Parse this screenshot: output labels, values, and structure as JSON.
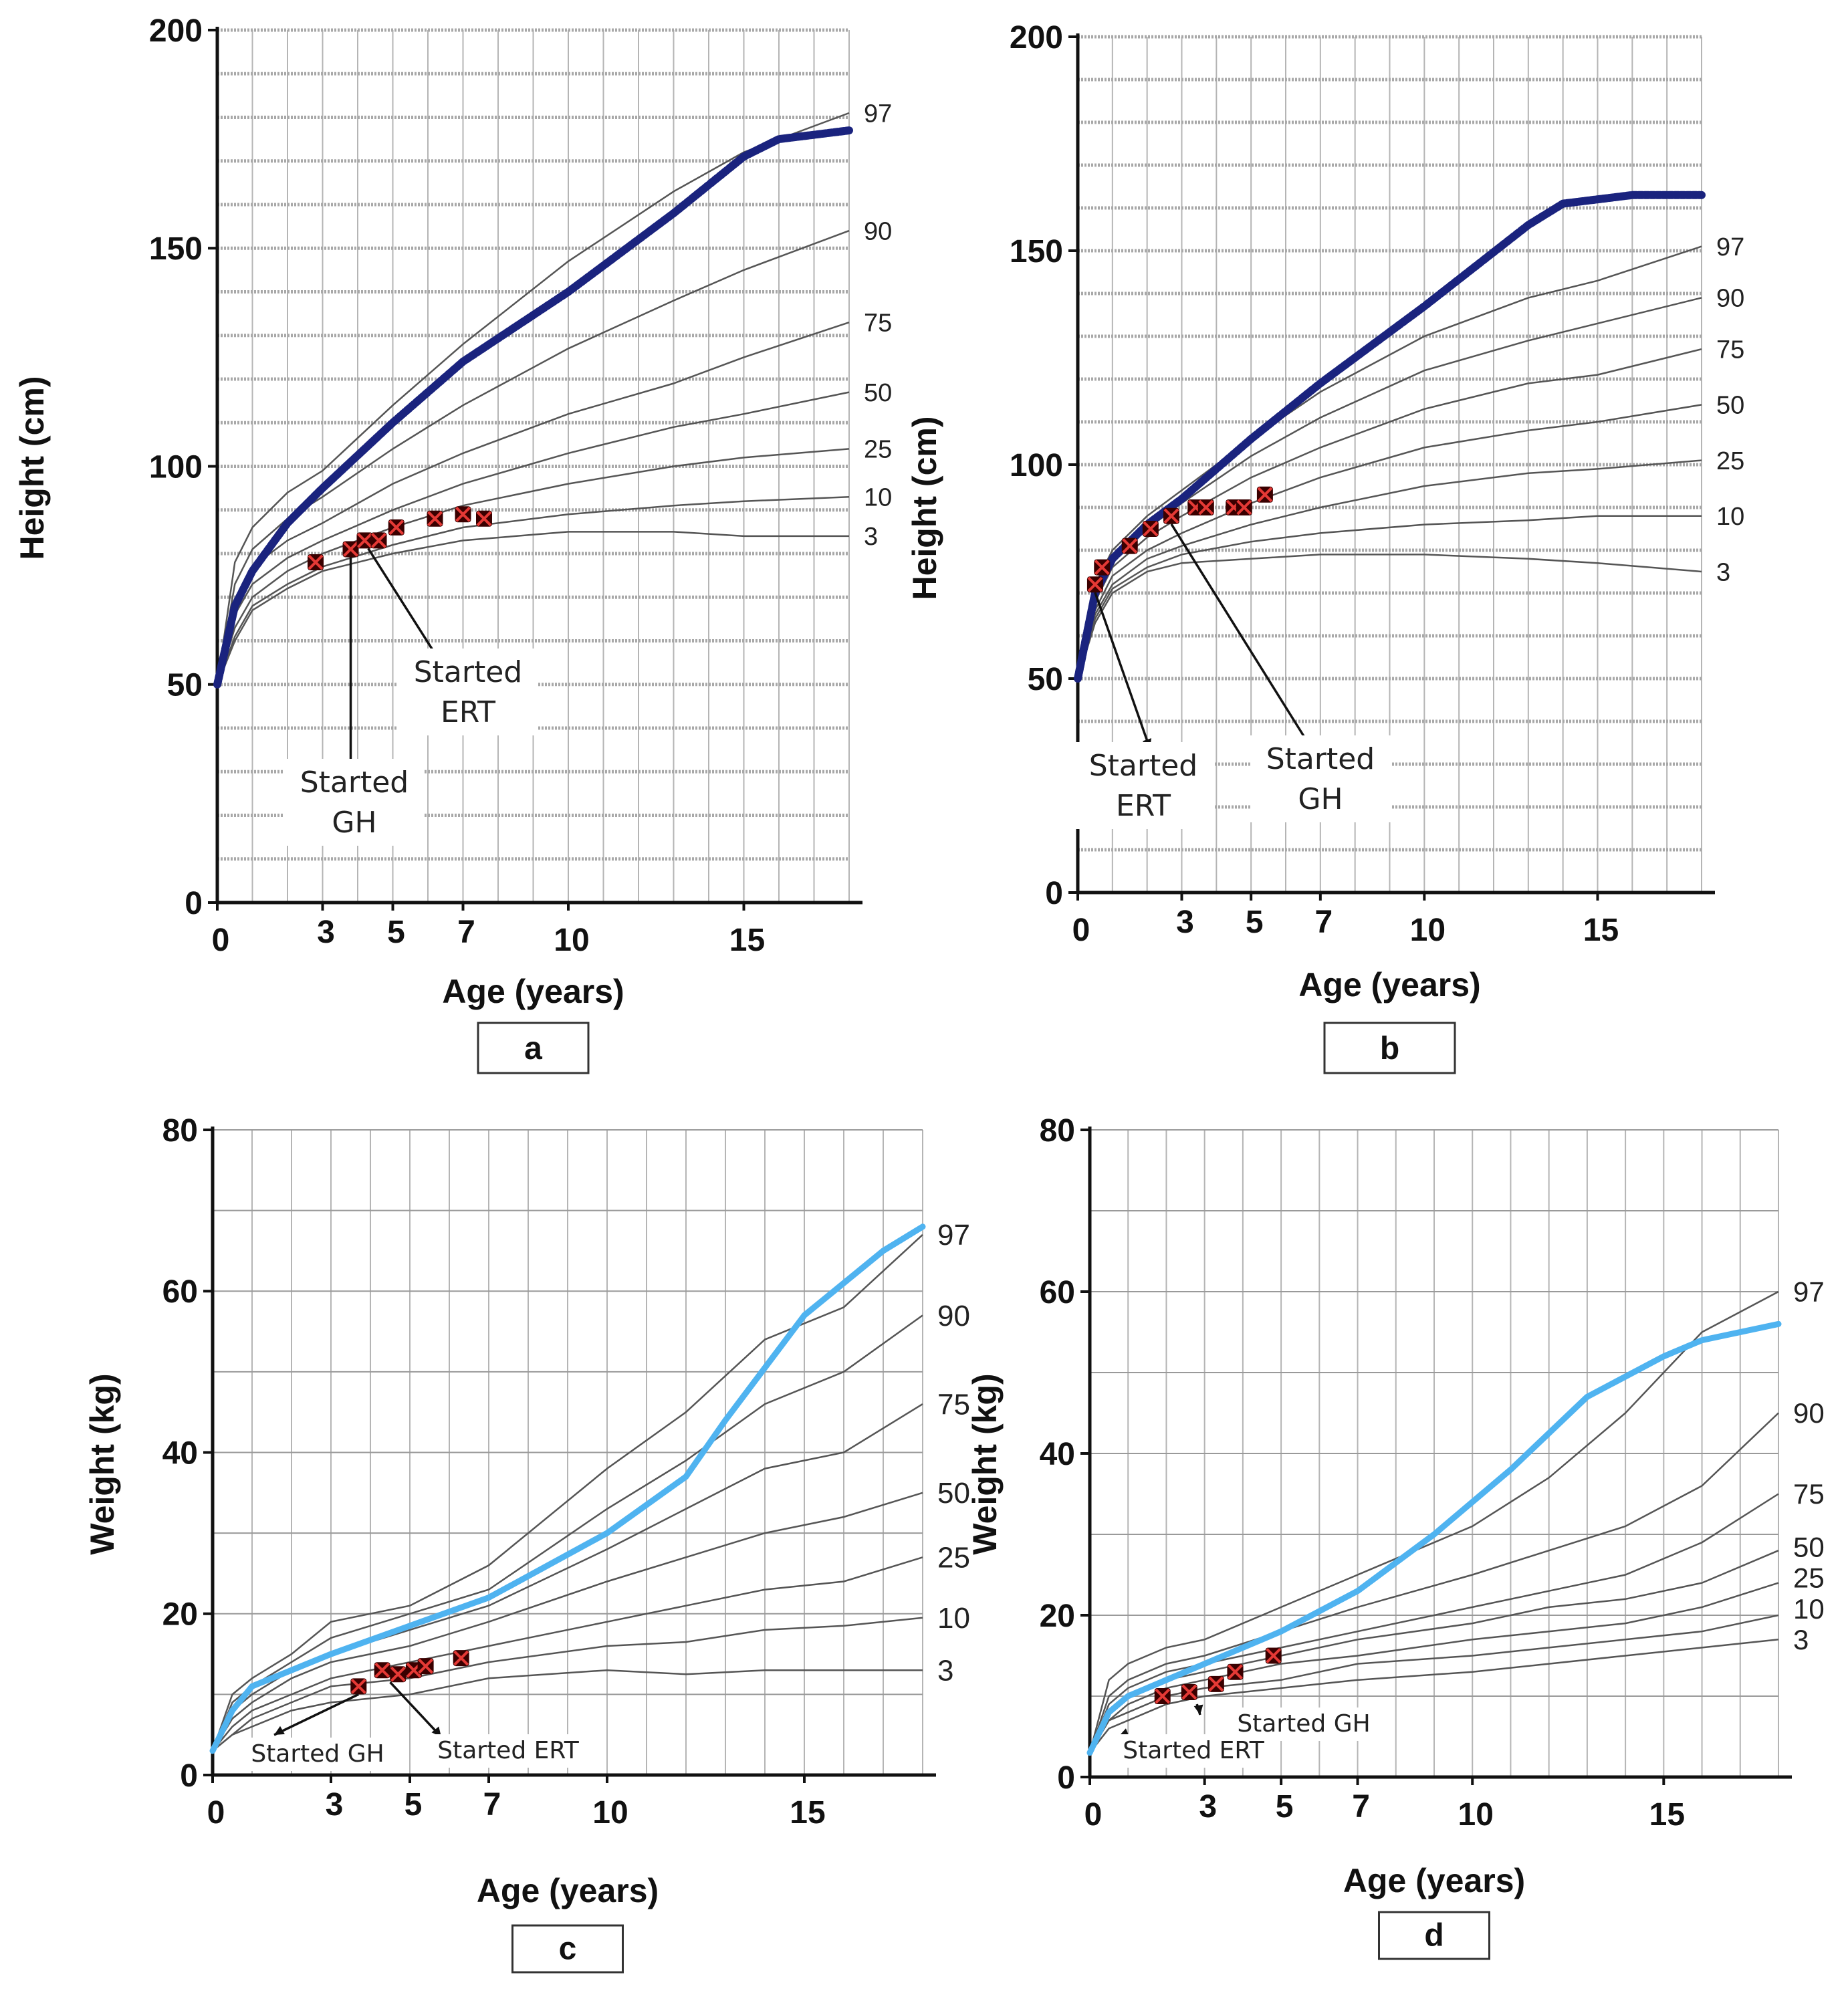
{
  "chart_data": [
    {
      "panel": "a",
      "type": "line",
      "ylabel": "Height (cm)",
      "xlabel": "Age (years)",
      "xticks": [
        0,
        3,
        5,
        7,
        10,
        15
      ],
      "yticks": [
        0,
        50,
        100,
        150,
        200
      ],
      "xlim": [
        0,
        18
      ],
      "ylim": [
        0,
        200
      ],
      "percentile_labels": [
        "97",
        "90",
        "75",
        "50",
        "25",
        "10",
        "3"
      ],
      "percentile_curves": [
        {
          "name": "97",
          "x": [
            0,
            0.5,
            1,
            2,
            3,
            5,
            7,
            10,
            13,
            15,
            18
          ],
          "y": [
            50,
            78,
            86,
            94,
            99,
            114,
            128,
            147,
            163,
            172,
            181
          ]
        },
        {
          "name": "90",
          "x": [
            0,
            0.5,
            1,
            2,
            3,
            5,
            7,
            10,
            13,
            15,
            18
          ],
          "y": [
            50,
            73,
            81,
            88,
            93,
            104,
            114,
            127,
            138,
            145,
            154
          ]
        },
        {
          "name": "75",
          "x": [
            0,
            0.5,
            1,
            2,
            3,
            5,
            7,
            10,
            13,
            15,
            18
          ],
          "y": [
            50,
            69,
            77,
            83,
            87,
            96,
            103,
            112,
            119,
            125,
            133
          ]
        },
        {
          "name": "50",
          "x": [
            0,
            0.5,
            1,
            2,
            3,
            5,
            7,
            10,
            13,
            15,
            18
          ],
          "y": [
            50,
            66,
            73,
            79,
            83,
            90,
            96,
            103,
            109,
            112,
            117
          ]
        },
        {
          "name": "25",
          "x": [
            0,
            0.5,
            1,
            2,
            3,
            5,
            7,
            10,
            13,
            15,
            18
          ],
          "y": [
            50,
            63,
            70,
            76,
            80,
            86,
            91,
            96,
            100,
            102,
            104
          ]
        },
        {
          "name": "10",
          "x": [
            0,
            0.5,
            1,
            2,
            3,
            5,
            7,
            10,
            13,
            15,
            18
          ],
          "y": [
            50,
            61,
            68,
            73,
            77,
            82,
            86,
            89,
            91,
            92,
            93
          ]
        },
        {
          "name": "3",
          "x": [
            0,
            0.5,
            1,
            2,
            3,
            5,
            7,
            10,
            13,
            15,
            18
          ],
          "y": [
            50,
            60,
            67,
            72,
            76,
            80,
            83,
            85,
            85,
            84,
            84
          ]
        }
      ],
      "reference_curve": {
        "x": [
          0,
          0.5,
          1,
          2,
          3,
          5,
          7,
          10,
          13,
          15,
          16,
          18
        ],
        "y": [
          50,
          68,
          76,
          87,
          95,
          110,
          124,
          140,
          158,
          171,
          175,
          177
        ]
      },
      "patient_points": {
        "x": [
          2.8,
          3.8,
          4.2,
          4.6,
          5.1,
          6.2,
          7.0,
          7.6
        ],
        "y": [
          78,
          81,
          83,
          83,
          86,
          88,
          89,
          88
        ]
      },
      "annotations": [
        {
          "line1": "Started",
          "line2": "GH",
          "target": {
            "x": 3.8,
            "y": 81
          }
        },
        {
          "line1": "Started",
          "line2": "ERT",
          "target": {
            "x": 4.3,
            "y": 83
          }
        }
      ]
    },
    {
      "panel": "b",
      "type": "line",
      "ylabel": "Height (cm)",
      "xlabel": "Age (years)",
      "xticks": [
        0,
        3,
        5,
        7,
        10,
        15
      ],
      "yticks": [
        0,
        50,
        100,
        150,
        200
      ],
      "xlim": [
        0,
        18
      ],
      "ylim": [
        0,
        200
      ],
      "percentile_labels": [
        "97",
        "90",
        "75",
        "50",
        "25",
        "10",
        "3"
      ],
      "percentile_curves": [
        {
          "name": "97",
          "x": [
            0,
            0.5,
            1,
            2,
            3,
            5,
            7,
            10,
            13,
            15,
            18
          ],
          "y": [
            50,
            72,
            80,
            88,
            94,
            106,
            117,
            130,
            139,
            143,
            151
          ]
        },
        {
          "name": "90",
          "x": [
            0,
            0.5,
            1,
            2,
            3,
            5,
            7,
            10,
            13,
            15,
            18
          ],
          "y": [
            50,
            70,
            78,
            85,
            91,
            102,
            111,
            122,
            129,
            133,
            139
          ]
        },
        {
          "name": "75",
          "x": [
            0,
            0.5,
            1,
            2,
            3,
            5,
            7,
            10,
            13,
            15,
            18
          ],
          "y": [
            50,
            68,
            76,
            83,
            88,
            97,
            104,
            113,
            119,
            121,
            127
          ]
        },
        {
          "name": "50",
          "x": [
            0,
            0.5,
            1,
            2,
            3,
            5,
            7,
            10,
            13,
            15,
            18
          ],
          "y": [
            50,
            66,
            74,
            80,
            84,
            91,
            97,
            104,
            108,
            110,
            114
          ]
        },
        {
          "name": "25",
          "x": [
            0,
            0.5,
            1,
            2,
            3,
            5,
            7,
            10,
            13,
            15,
            18
          ],
          "y": [
            50,
            65,
            72,
            78,
            81,
            86,
            90,
            95,
            98,
            99,
            101
          ]
        },
        {
          "name": "10",
          "x": [
            0,
            0.5,
            1,
            2,
            3,
            5,
            7,
            10,
            13,
            15,
            18
          ],
          "y": [
            50,
            64,
            71,
            76,
            79,
            82,
            84,
            86,
            87,
            88,
            88
          ]
        },
        {
          "name": "3",
          "x": [
            0,
            0.5,
            1,
            2,
            3,
            5,
            7,
            10,
            13,
            15,
            18
          ],
          "y": [
            50,
            63,
            70,
            75,
            77,
            78,
            79,
            79,
            78,
            77,
            75
          ]
        }
      ],
      "reference_curve": {
        "x": [
          0,
          0.5,
          1,
          2,
          3,
          5,
          7,
          10,
          13,
          14,
          15,
          16,
          18
        ],
        "y": [
          50,
          70,
          78,
          86,
          92,
          106,
          119,
          137,
          156,
          161,
          162,
          163,
          163
        ]
      },
      "patient_points": {
        "x": [
          0.5,
          0.7,
          1.5,
          2.1,
          2.7,
          3.4,
          3.7,
          4.5,
          4.8,
          5.4
        ],
        "y": [
          72,
          76,
          81,
          85,
          88,
          90,
          90,
          90,
          90,
          93
        ]
      },
      "annotations": [
        {
          "line1": "Started",
          "line2": "ERT",
          "target": {
            "x": 0.5,
            "y": 72
          }
        },
        {
          "line1": "Started",
          "line2": "GH",
          "target": {
            "x": 2.7,
            "y": 88
          }
        }
      ]
    },
    {
      "panel": "c",
      "type": "line",
      "ylabel": "Weight (kg)",
      "xlabel": "Age (years)",
      "xticks": [
        0,
        3,
        5,
        7,
        10,
        15
      ],
      "yticks": [
        0,
        20,
        40,
        60,
        80
      ],
      "xlim": [
        0,
        18
      ],
      "ylim": [
        0,
        80
      ],
      "percentile_labels": [
        "97",
        "90",
        "75",
        "50",
        "25",
        "10",
        "3"
      ],
      "percentile_curves": [
        {
          "name": "97",
          "x": [
            0,
            0.5,
            1,
            2,
            3,
            5,
            7,
            10,
            12,
            14,
            16,
            18
          ],
          "y": [
            3,
            10,
            12,
            15,
            19,
            21,
            26,
            38,
            45,
            54,
            58,
            67
          ]
        },
        {
          "name": "90",
          "x": [
            0,
            0.5,
            1,
            2,
            3,
            5,
            7,
            10,
            12,
            14,
            16,
            18
          ],
          "y": [
            3,
            9,
            11,
            14,
            17,
            20,
            23,
            33,
            39,
            46,
            50,
            57
          ]
        },
        {
          "name": "75",
          "x": [
            0,
            0.5,
            1,
            2,
            3,
            5,
            7,
            10,
            12,
            14,
            16,
            18
          ],
          "y": [
            3,
            8,
            10,
            13,
            15,
            18,
            21,
            28,
            33,
            38,
            40,
            46
          ]
        },
        {
          "name": "50",
          "x": [
            0,
            0.5,
            1,
            2,
            3,
            5,
            7,
            10,
            12,
            14,
            16,
            18
          ],
          "y": [
            3,
            7,
            9,
            12,
            14,
            16,
            19,
            24,
            27,
            30,
            32,
            35
          ]
        },
        {
          "name": "25",
          "x": [
            0,
            0.5,
            1,
            2,
            3,
            5,
            7,
            10,
            12,
            14,
            16,
            18
          ],
          "y": [
            3,
            6,
            8,
            10,
            12,
            14,
            16,
            19,
            21,
            23,
            24,
            27
          ]
        },
        {
          "name": "10",
          "x": [
            0,
            0.5,
            1,
            2,
            3,
            5,
            7,
            10,
            12,
            14,
            16,
            18
          ],
          "y": [
            3,
            5,
            7,
            9,
            11,
            12,
            14,
            16,
            16.5,
            18,
            18.5,
            19.5
          ]
        },
        {
          "name": "3",
          "x": [
            0,
            0.5,
            1,
            2,
            3,
            5,
            7,
            10,
            12,
            14,
            16,
            18
          ],
          "y": [
            3,
            5,
            6,
            8,
            9,
            10,
            12,
            13,
            12.5,
            13,
            13,
            13
          ]
        }
      ],
      "reference_curve": {
        "x": [
          0,
          0.5,
          1,
          2,
          3,
          5,
          7,
          10,
          12,
          13,
          15,
          17,
          18
        ],
        "y": [
          3,
          8,
          11,
          13,
          15,
          18.5,
          22,
          30,
          37,
          44,
          57,
          65,
          68
        ]
      },
      "patient_points": {
        "x": [
          3.7,
          4.3,
          4.7,
          5.1,
          5.4,
          6.3
        ],
        "y": [
          11,
          13,
          12.5,
          13,
          13.5,
          14.5
        ]
      },
      "annotations": [
        {
          "label": "Started GH",
          "target": {
            "x": 3.7,
            "y": 11
          }
        },
        {
          "label": "Started ERT",
          "target": {
            "x": 4.5,
            "y": 12.5
          }
        }
      ]
    },
    {
      "panel": "d",
      "type": "line",
      "ylabel": "Weight (kg)",
      "xlabel": "Age (years)",
      "xticks": [
        0,
        3,
        5,
        7,
        10,
        15
      ],
      "yticks": [
        0,
        20,
        40,
        60,
        80
      ],
      "xlim": [
        0,
        18
      ],
      "ylim": [
        0,
        80
      ],
      "percentile_labels": [
        "97",
        "90",
        "75",
        "50",
        "25",
        "10",
        "3"
      ],
      "percentile_curves": [
        {
          "name": "97",
          "x": [
            0,
            0.5,
            1,
            2,
            3,
            5,
            7,
            10,
            12,
            14,
            16,
            18
          ],
          "y": [
            3,
            12,
            14,
            16,
            17,
            21,
            25,
            31,
            37,
            45,
            55,
            60
          ]
        },
        {
          "name": "90",
          "x": [
            0,
            0.5,
            1,
            2,
            3,
            5,
            7,
            10,
            12,
            14,
            16,
            18
          ],
          "y": [
            3,
            10,
            12,
            14,
            15,
            18,
            21,
            25,
            28,
            31,
            36,
            45
          ]
        },
        {
          "name": "75",
          "x": [
            0,
            0.5,
            1,
            2,
            3,
            5,
            7,
            10,
            12,
            14,
            16,
            18
          ],
          "y": [
            3,
            9,
            11,
            13,
            14,
            16,
            18,
            21,
            23,
            25,
            29,
            35
          ]
        },
        {
          "name": "50",
          "x": [
            0,
            0.5,
            1,
            2,
            3,
            5,
            7,
            10,
            12,
            14,
            16,
            18
          ],
          "y": [
            3,
            8,
            10,
            12,
            13,
            15,
            17,
            19,
            21,
            22,
            24,
            28
          ]
        },
        {
          "name": "25",
          "x": [
            0,
            0.5,
            1,
            2,
            3,
            5,
            7,
            10,
            12,
            14,
            16,
            18
          ],
          "y": [
            3,
            7,
            9,
            11,
            12,
            14,
            15,
            17,
            18,
            19,
            21,
            24
          ]
        },
        {
          "name": "10",
          "x": [
            0,
            0.5,
            1,
            2,
            3,
            5,
            7,
            10,
            12,
            14,
            16,
            18
          ],
          "y": [
            3,
            7,
            8,
            10,
            11,
            12,
            14,
            15,
            16,
            17,
            18,
            20
          ]
        },
        {
          "name": "3",
          "x": [
            0,
            0.5,
            1,
            2,
            3,
            5,
            7,
            10,
            12,
            14,
            16,
            18
          ],
          "y": [
            3,
            6,
            7,
            9,
            10,
            11,
            12,
            13,
            14,
            15,
            16,
            17
          ]
        }
      ],
      "reference_curve": {
        "x": [
          0,
          0.5,
          1,
          2,
          3,
          5,
          7,
          9,
          11,
          13,
          15,
          16,
          18
        ],
        "y": [
          3,
          8,
          10,
          12,
          14,
          18,
          23,
          30,
          38,
          47,
          52,
          54,
          56
        ]
      },
      "patient_points": {
        "x": [
          1.9,
          2.6,
          3.3,
          3.8,
          4.8
        ],
        "y": [
          10,
          10.5,
          11.5,
          13,
          15
        ]
      },
      "annotations": [
        {
          "label": "Started GH",
          "target": {
            "x": 2.8,
            "y": 10
          }
        },
        {
          "label": "Started ERT",
          "target": {
            "x": 1.0,
            "y": 5
          }
        }
      ]
    }
  ]
}
